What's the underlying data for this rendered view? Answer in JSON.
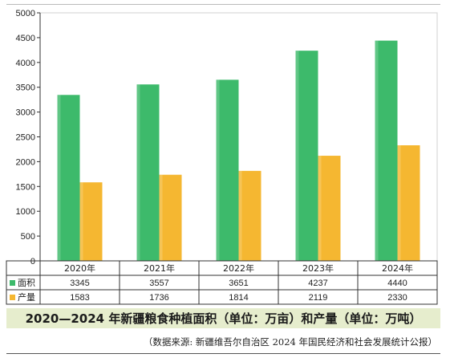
{
  "chart_data": {
    "type": "bar",
    "categories": [
      "2020年",
      "2021年",
      "2022年",
      "2023年",
      "2024年"
    ],
    "series": [
      {
        "name": "面积",
        "values": [
          3345,
          3557,
          3651,
          4237,
          4440
        ],
        "color": "#3dba6b"
      },
      {
        "name": "产量",
        "values": [
          1583,
          1736,
          1814,
          2119,
          2330
        ],
        "color": "#f5b731"
      }
    ],
    "yticks": [
      "0",
      "500",
      "1000",
      "1500",
      "2000",
      "2500",
      "3000",
      "3500",
      "4000",
      "4500",
      "5000"
    ],
    "ylim": [
      0,
      5000
    ],
    "legend_placement": "data-table",
    "grid": false,
    "table_rows": [
      {
        "label": "面积",
        "cells": [
          "3345",
          "3557",
          "3651",
          "4237",
          "4440"
        ]
      },
      {
        "label": "产量",
        "cells": [
          "1583",
          "1736",
          "1814",
          "2119",
          "2330"
        ]
      }
    ],
    "title": "2020—2024 年新疆粮食种植面积（单位：万亩）和产量（单位：万吨）"
  },
  "caption": "2020—2024 年新疆粮食种植面积（单位：万亩）和产量（单位：万吨）",
  "source": "（数据来源: 新疆维吾尔自治区 2024 年国民经济和社会发展统计公报）",
  "colors": {
    "caption_bg": "#e6edcd",
    "green": "#3dba6b",
    "orange": "#f5b731"
  }
}
